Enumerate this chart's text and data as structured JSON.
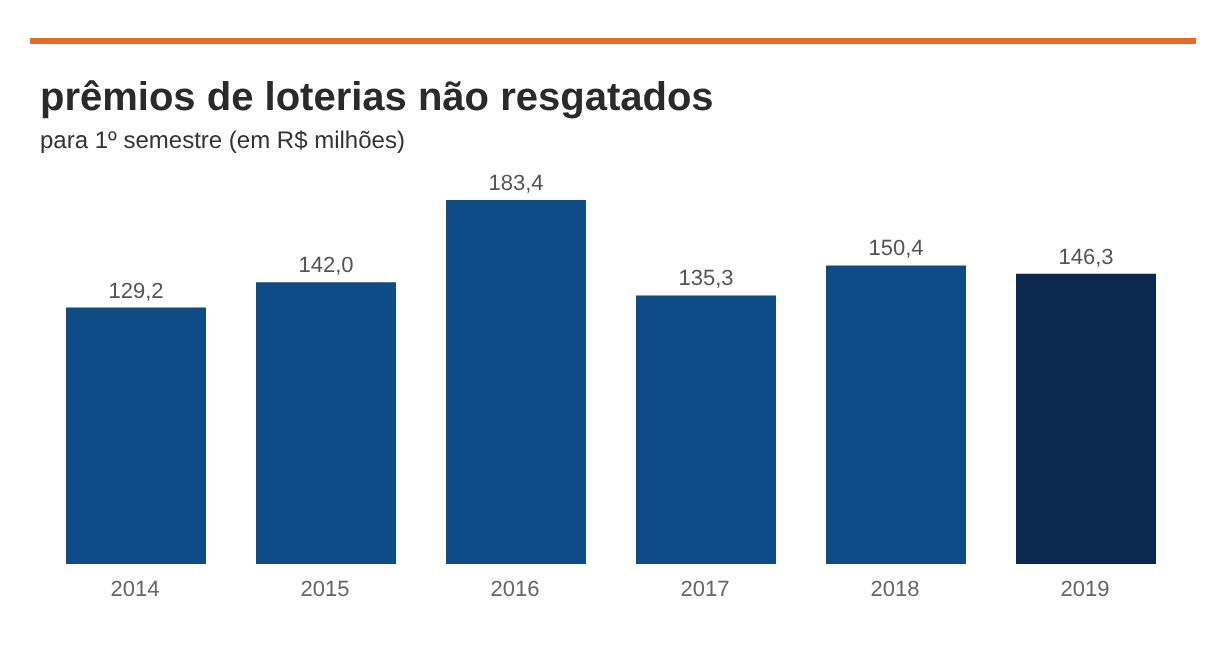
{
  "chart_data": {
    "type": "bar",
    "title": "prêmios de loterias não resgatados",
    "subtitle": "para 1º semestre (em R$ milhões)",
    "categories": [
      "2014",
      "2015",
      "2016",
      "2017",
      "2018",
      "2019"
    ],
    "values": [
      129.2,
      142.0,
      183.4,
      135.3,
      150.4,
      146.3
    ],
    "colors": [
      "#0e4b87",
      "#0e4b87",
      "#0e4b87",
      "#0e4b87",
      "#0e4b87",
      "#0b2850"
    ],
    "value_labels": [
      "129,2",
      "142,0",
      "183,4",
      "135,3",
      "150,4",
      "146,3"
    ],
    "grid": false,
    "legend": false
  }
}
